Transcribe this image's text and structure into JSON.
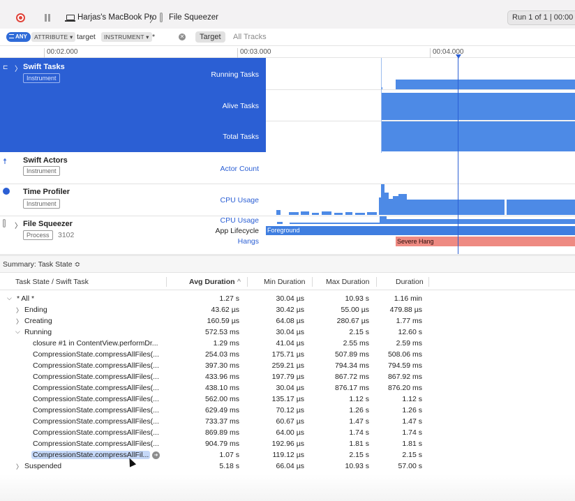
{
  "toolbar": {
    "device": "Harjas's MacBook Pro",
    "app": "File Squeezer",
    "run": "Run 1 of 1  |  00:00"
  },
  "filter": {
    "any": "ANY",
    "attribute": "ATTRIBUTE ▾",
    "target_text": "target",
    "instrument": "INSTRUMENT ▾",
    "wildcard": "*",
    "target_button": "Target",
    "all_tracks": "All Tracks"
  },
  "ruler": [
    "00:02.000",
    "00:03.000",
    "00:04.000"
  ],
  "tracks": {
    "swift_tasks": {
      "title": "Swift Tasks",
      "badge": "Instrument",
      "lanes": [
        "Running Tasks",
        "Alive Tasks",
        "Total Tasks"
      ]
    },
    "swift_actors": {
      "title": "Swift Actors",
      "badge": "Instrument",
      "lane": "Actor Count"
    },
    "time_profiler": {
      "title": "Time Profiler",
      "badge": "Instrument",
      "lane": "CPU Usage"
    },
    "file_squeezer": {
      "title": "File Squeezer",
      "badge": "Process",
      "pid": "3102",
      "lanes": [
        "CPU Usage",
        "App Lifecycle",
        "Hangs"
      ],
      "lifecycle_label": "Foreground",
      "hang_label": "Severe Hang"
    }
  },
  "summary": {
    "label": "Summary: Task State ≎"
  },
  "columns": [
    "Task State / Swift Task",
    "Avg Duration",
    "Min Duration",
    "Max Duration",
    "Duration"
  ],
  "sort_indicator": "^",
  "rows": [
    {
      "name": "* All *",
      "avg": "1.27 s",
      "min": "30.04 µs",
      "max": "10.93 s",
      "dur": "1.16 min"
    },
    {
      "name": "Ending",
      "avg": "43.62 µs",
      "min": "30.42 µs",
      "max": "55.00 µs",
      "dur": "479.88 µs"
    },
    {
      "name": "Creating",
      "avg": "160.59 µs",
      "min": "64.08 µs",
      "max": "280.67 µs",
      "dur": "1.77 ms"
    },
    {
      "name": "Running",
      "avg": "572.53 ms",
      "min": "30.04 µs",
      "max": "2.15 s",
      "dur": "12.60 s"
    },
    {
      "name": "closure #1 in ContentView.performDr...",
      "avg": "1.29 ms",
      "min": "41.04 µs",
      "max": "2.55 ms",
      "dur": "2.59 ms"
    },
    {
      "name": "CompressionState.compressAllFiles(...",
      "avg": "254.03 ms",
      "min": "175.71 µs",
      "max": "507.89 ms",
      "dur": "508.06 ms"
    },
    {
      "name": "CompressionState.compressAllFiles(...",
      "avg": "397.30 ms",
      "min": "259.21 µs",
      "max": "794.34 ms",
      "dur": "794.59 ms"
    },
    {
      "name": "CompressionState.compressAllFiles(...",
      "avg": "433.96 ms",
      "min": "197.79 µs",
      "max": "867.72 ms",
      "dur": "867.92 ms"
    },
    {
      "name": "CompressionState.compressAllFiles(...",
      "avg": "438.10 ms",
      "min": "30.04 µs",
      "max": "876.17 ms",
      "dur": "876.20 ms"
    },
    {
      "name": "CompressionState.compressAllFiles(...",
      "avg": "562.00 ms",
      "min": "135.17 µs",
      "max": "1.12 s",
      "dur": "1.12 s"
    },
    {
      "name": "CompressionState.compressAllFiles(...",
      "avg": "629.49 ms",
      "min": "70.12 µs",
      "max": "1.26 s",
      "dur": "1.26 s"
    },
    {
      "name": "CompressionState.compressAllFiles(...",
      "avg": "733.37 ms",
      "min": "60.67 µs",
      "max": "1.47 s",
      "dur": "1.47 s"
    },
    {
      "name": "CompressionState.compressAllFiles(...",
      "avg": "869.89 ms",
      "min": "64.00 µs",
      "max": "1.74 s",
      "dur": "1.74 s"
    },
    {
      "name": "CompressionState.compressAllFiles(...",
      "avg": "904.79 ms",
      "min": "192.96 µs",
      "max": "1.81 s",
      "dur": "1.81 s"
    },
    {
      "name": "CompressionState.compressAllFil...",
      "avg": "1.07 s",
      "min": "119.12 µs",
      "max": "2.15 s",
      "dur": "2.15 s"
    },
    {
      "name": "Suspended",
      "avg": "5.18 s",
      "min": "66.04 µs",
      "max": "10.93 s",
      "dur": "57.00 s"
    }
  ],
  "colors": {
    "accent": "#2b5fd4",
    "bar": "#4d8ae6",
    "hang": "#ee8a82",
    "record": "#e0443a"
  }
}
